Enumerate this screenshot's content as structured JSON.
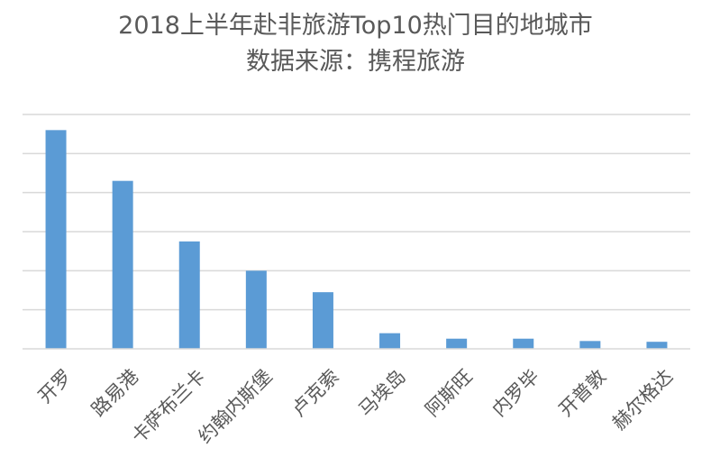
{
  "chart_data": {
    "type": "bar",
    "title": "2018上半年赴非旅游Top10热门目的地城市",
    "subtitle": "数据来源：携程旅游",
    "xlabel": "",
    "ylabel": "",
    "categories": [
      "开罗",
      "路易港",
      "卡萨布兰卡",
      "约翰内斯堡",
      "卢克索",
      "马埃岛",
      "阿斯旺",
      "内罗毕",
      "开普敦",
      "赫尔格达"
    ],
    "values": [
      5.6,
      4.3,
      2.75,
      2.0,
      1.45,
      0.4,
      0.26,
      0.26,
      0.2,
      0.18
    ],
    "ylim": [
      0,
      6
    ],
    "grid": true,
    "legend": "none",
    "bar_color": "#5b9bd5"
  }
}
